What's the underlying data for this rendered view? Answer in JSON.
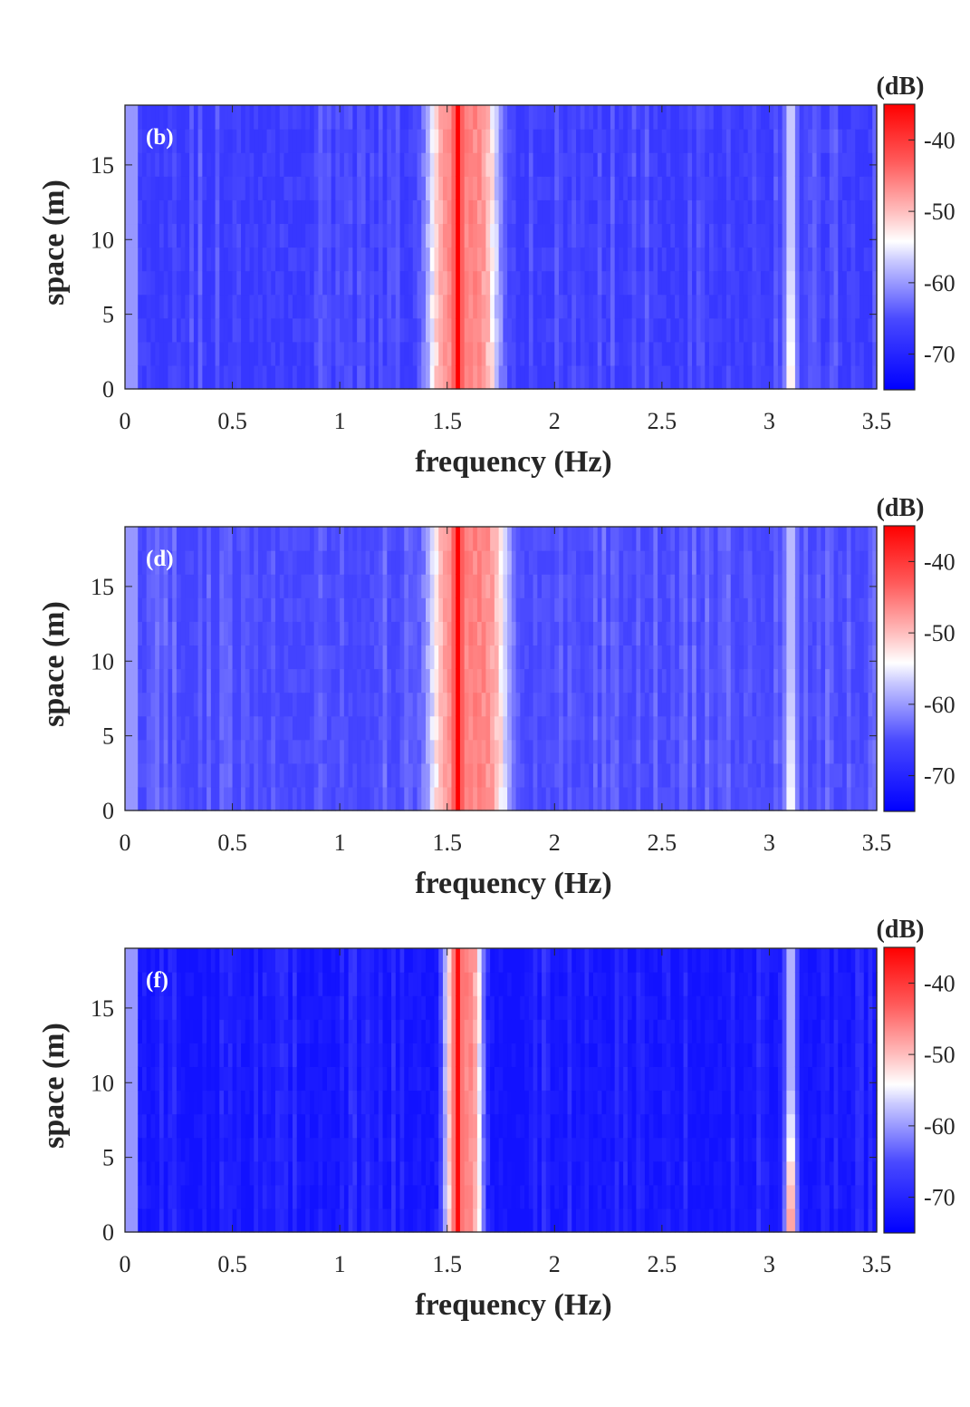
{
  "chart_data": [
    {
      "type": "heatmap",
      "panel_label": "(b)",
      "title": "",
      "xlabel": "frequency (Hz)",
      "ylabel": "space (m)",
      "xlim": [
        0,
        3.5
      ],
      "ylim": [
        0,
        19
      ],
      "x_ticks": [
        0,
        0.5,
        1,
        1.5,
        2,
        2.5,
        3,
        3.5
      ],
      "x_tick_labels": [
        "0",
        "0.5",
        "1",
        "1.5",
        "2",
        "2.5",
        "3",
        "3.5"
      ],
      "y_ticks": [
        0,
        5,
        10,
        15
      ],
      "y_tick_labels": [
        "0",
        "5",
        "10",
        "15"
      ],
      "colorbar": {
        "unit": "(dB)",
        "range": [
          -75,
          -35
        ],
        "ticks": [
          -40,
          -50,
          -60,
          -70
        ],
        "tick_labels": [
          "-40",
          "-50",
          "-60",
          "-70"
        ],
        "colormap": "blue-white-red"
      },
      "features": {
        "background_db": -67,
        "peak_frequency_hz": 1.55,
        "peak_db": -35,
        "peak_band_hz": [
          1.35,
          1.8
        ],
        "harmonic_frequency_hz": 3.1,
        "harmonic_db": -56,
        "harmonic_lower_db": -52
      }
    },
    {
      "type": "heatmap",
      "panel_label": "(d)",
      "title": "",
      "xlabel": "frequency (Hz)",
      "ylabel": "space (m)",
      "xlim": [
        0,
        3.5
      ],
      "ylim": [
        0,
        19
      ],
      "x_ticks": [
        0,
        0.5,
        1,
        1.5,
        2,
        2.5,
        3,
        3.5
      ],
      "x_tick_labels": [
        "0",
        "0.5",
        "1",
        "1.5",
        "2",
        "2.5",
        "3",
        "3.5"
      ],
      "y_ticks": [
        0,
        5,
        10,
        15
      ],
      "y_tick_labels": [
        "0",
        "5",
        "10",
        "15"
      ],
      "colorbar": {
        "unit": "(dB)",
        "range": [
          -75,
          -35
        ],
        "ticks": [
          -40,
          -50,
          -60,
          -70
        ],
        "tick_labels": [
          "-40",
          "-50",
          "-60",
          "-70"
        ],
        "colormap": "blue-white-red"
      },
      "features": {
        "background_db": -66,
        "peak_frequency_hz": 1.55,
        "peak_db": -35,
        "peak_band_hz": [
          1.35,
          1.85
        ],
        "harmonic_frequency_hz": 3.1,
        "harmonic_db": -57,
        "harmonic_lower_db": -53
      }
    },
    {
      "type": "heatmap",
      "panel_label": "(f)",
      "title": "",
      "xlabel": "frequency (Hz)",
      "ylabel": "space (m)",
      "xlim": [
        0,
        3.5
      ],
      "ylim": [
        0,
        19
      ],
      "x_ticks": [
        0,
        0.5,
        1,
        1.5,
        2,
        2.5,
        3,
        3.5
      ],
      "x_tick_labels": [
        "0",
        "0.5",
        "1",
        "1.5",
        "2",
        "2.5",
        "3",
        "3.5"
      ],
      "y_ticks": [
        0,
        5,
        10,
        15
      ],
      "y_tick_labels": [
        "0",
        "5",
        "10",
        "15"
      ],
      "colorbar": {
        "unit": "(dB)",
        "range": [
          -75,
          -35
        ],
        "ticks": [
          -40,
          -50,
          -60,
          -70
        ],
        "tick_labels": [
          "-40",
          "-50",
          "-60",
          "-70"
        ],
        "colormap": "blue-white-red"
      },
      "features": {
        "background_db": -71,
        "peak_frequency_hz": 1.55,
        "peak_db": -36,
        "peak_band_hz": [
          1.45,
          1.7
        ],
        "harmonic_frequency_hz": 3.1,
        "harmonic_db": -57,
        "harmonic_lower_db": -46
      }
    }
  ]
}
